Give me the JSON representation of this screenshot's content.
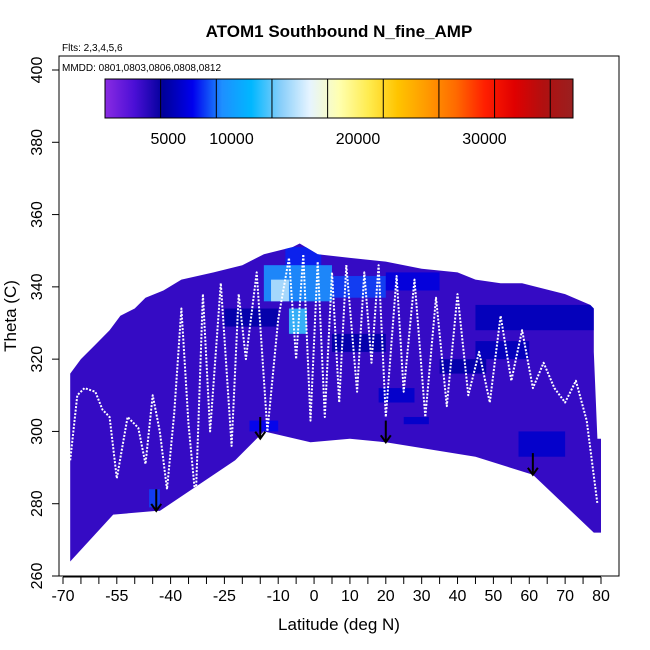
{
  "chart_data": {
    "type": "heatmap",
    "title": "ATOM1 Southbound N_fine_AMP",
    "subtitle_flights": "Flts: 2,3,4,5,6",
    "subtitle_dates": "MMDD: 0801,0803,0806,0808,0812",
    "xlabel": "Latitude (deg N)",
    "ylabel": "Theta (C)",
    "xlim": [
      -70,
      80
    ],
    "ylim": [
      260,
      400
    ],
    "x_ticks": [
      -70,
      -55,
      -40,
      -25,
      -10,
      0,
      10,
      20,
      30,
      40,
      50,
      60,
      70,
      80
    ],
    "x_tick_labels": [
      "-70",
      "-55",
      "-40",
      "-25",
      "-10",
      "0",
      "10",
      "20",
      "30",
      "40",
      "50",
      "60",
      "70",
      "80"
    ],
    "x_minor_ticks": [
      -65,
      -60,
      -50,
      -45,
      -35,
      -30,
      -20,
      -15,
      -5,
      5,
      15,
      25,
      35,
      45,
      55,
      65,
      75
    ],
    "y_ticks": [
      260,
      280,
      300,
      320,
      340,
      360,
      380,
      400
    ],
    "y_tick_labels": [
      "260",
      "280",
      "300",
      "320",
      "340",
      "360",
      "380",
      "400"
    ],
    "colorbar": {
      "min": 0,
      "max": 37000,
      "tick_values": [
        5000,
        10000,
        20000,
        30000
      ],
      "tick_labels": [
        "5000",
        "10000",
        "20000",
        "30000"
      ],
      "division_values": [
        4400,
        8800,
        13200,
        17600,
        22000,
        26400,
        30800,
        35200
      ],
      "colors": [
        "#8a2be2",
        "#4b0fd6",
        "#00009a",
        "#0000ee",
        "#1e8fff",
        "#00b7ff",
        "#87cefa",
        "#e6f4ff",
        "#ffffb0",
        "#ffec50",
        "#ffc400",
        "#ff9a00",
        "#ff6a00",
        "#ff1e00",
        "#e00000",
        "#b01010",
        "#9a2020"
      ]
    },
    "data_region": {
      "upper_boundary": [
        [
          -68,
          316
        ],
        [
          -65,
          320
        ],
        [
          -61,
          324
        ],
        [
          -57,
          328
        ],
        [
          -54,
          332
        ],
        [
          -50,
          334
        ],
        [
          -47,
          337
        ],
        [
          -42,
          339
        ],
        [
          -37,
          342
        ],
        [
          -28,
          344
        ],
        [
          -20,
          346
        ],
        [
          -14,
          349
        ],
        [
          -6,
          351
        ],
        [
          -4,
          352
        ],
        [
          1,
          349
        ],
        [
          10,
          348
        ],
        [
          20,
          347
        ],
        [
          30,
          345
        ],
        [
          40,
          344
        ],
        [
          45,
          342
        ],
        [
          52,
          341
        ],
        [
          58,
          341
        ],
        [
          62,
          340
        ],
        [
          70,
          338
        ],
        [
          77,
          335
        ],
        [
          78,
          334
        ]
      ],
      "lower_boundary": [
        [
          78,
          322
        ],
        [
          79,
          298
        ],
        [
          80,
          298
        ],
        [
          80,
          272
        ],
        [
          78,
          272
        ],
        [
          61,
          288
        ],
        [
          45,
          293
        ],
        [
          20,
          297
        ],
        [
          10,
          298
        ],
        [
          -1,
          297
        ],
        [
          -14,
          300
        ],
        [
          -22,
          292
        ],
        [
          -43,
          278
        ],
        [
          -44,
          278
        ],
        [
          -56,
          277
        ],
        [
          -68,
          264
        ]
      ],
      "background_value": 3000,
      "patches": [
        {
          "lat_range": [
            -8,
            2
          ],
          "theta_range": [
            345,
            351
          ],
          "value": 7500
        },
        {
          "lat_range": [
            -14,
            5
          ],
          "theta_range": [
            336,
            346
          ],
          "value": 9500
        },
        {
          "lat_range": [
            -12,
            -7
          ],
          "theta_range": [
            336,
            342
          ],
          "value": 15000
        },
        {
          "lat_range": [
            -7,
            -2
          ],
          "theta_range": [
            327,
            334
          ],
          "value": 12500
        },
        {
          "lat_range": [
            5,
            20
          ],
          "theta_range": [
            337,
            343
          ],
          "value": 8000
        },
        {
          "lat_range": [
            20,
            35
          ],
          "theta_range": [
            339,
            344
          ],
          "value": 6500
        },
        {
          "lat_range": [
            45,
            78
          ],
          "theta_range": [
            328,
            335
          ],
          "value": 5500
        },
        {
          "lat_range": [
            -25,
            -10
          ],
          "theta_range": [
            329,
            334
          ],
          "value": 5000
        },
        {
          "lat_range": [
            5,
            20
          ],
          "theta_range": [
            322,
            327
          ],
          "value": 5000
        },
        {
          "lat_range": [
            45,
            60
          ],
          "theta_range": [
            320,
            325
          ],
          "value": 5500
        },
        {
          "lat_range": [
            35,
            48
          ],
          "theta_range": [
            316,
            320
          ],
          "value": 5000
        },
        {
          "lat_range": [
            18,
            28
          ],
          "theta_range": [
            308,
            312
          ],
          "value": 6000
        },
        {
          "lat_range": [
            57,
            70
          ],
          "theta_range": [
            293,
            300
          ],
          "value": 6000
        },
        {
          "lat_range": [
            -18,
            -10
          ],
          "theta_range": [
            300,
            303
          ],
          "value": 7000
        },
        {
          "lat_range": [
            25,
            32
          ],
          "theta_range": [
            302,
            304
          ],
          "value": 6000
        },
        {
          "lat_range": [
            -46,
            -43
          ],
          "theta_range": [
            279,
            284
          ],
          "value": 8000
        }
      ]
    },
    "flight_tracks": [
      [
        [
          -68,
          292
        ],
        [
          -66,
          310
        ],
        [
          -64,
          312
        ],
        [
          -61,
          311
        ],
        [
          -59,
          306
        ],
        [
          -57,
          304
        ],
        [
          -55,
          287
        ],
        [
          -52,
          304
        ],
        [
          -49,
          301
        ],
        [
          -47,
          291
        ],
        [
          -45,
          310
        ],
        [
          -43,
          300
        ],
        [
          -41,
          284
        ],
        [
          -39,
          305
        ],
        [
          -37,
          334
        ],
        [
          -35,
          302
        ],
        [
          -33,
          281
        ]
      ],
      [
        [
          -33,
          281
        ],
        [
          -31,
          338
        ],
        [
          -29,
          300
        ],
        [
          -26,
          341
        ],
        [
          -23,
          296
        ],
        [
          -21,
          338
        ],
        [
          -19,
          320
        ],
        [
          -16,
          344
        ],
        [
          -13,
          300
        ],
        [
          -10,
          331
        ],
        [
          -7,
          348
        ],
        [
          -5,
          320
        ],
        [
          -3,
          349
        ],
        [
          -1,
          303
        ],
        [
          1,
          347
        ],
        [
          3,
          304
        ],
        [
          5,
          344
        ],
        [
          7,
          308
        ],
        [
          9,
          346
        ]
      ],
      [
        [
          9,
          346
        ],
        [
          12,
          311
        ],
        [
          14,
          344
        ],
        [
          16,
          319
        ],
        [
          18,
          346
        ],
        [
          20,
          304
        ],
        [
          23,
          343
        ],
        [
          25,
          311
        ],
        [
          28,
          342
        ],
        [
          31,
          304
        ],
        [
          34,
          337
        ],
        [
          37,
          307
        ],
        [
          40,
          338
        ],
        [
          43,
          310
        ],
        [
          46,
          322
        ],
        [
          49,
          308
        ],
        [
          52,
          332
        ],
        [
          55,
          314
        ],
        [
          58,
          328
        ],
        [
          61,
          312
        ],
        [
          64,
          319
        ],
        [
          67,
          312
        ],
        [
          70,
          308
        ],
        [
          73,
          314
        ],
        [
          76,
          303
        ],
        [
          79,
          280
        ]
      ]
    ],
    "arrows": [
      {
        "lat": -44,
        "theta_top": 284,
        "theta_bottom": 278
      },
      {
        "lat": -15,
        "theta_top": 304,
        "theta_bottom": 298
      },
      {
        "lat": 20,
        "theta_top": 303,
        "theta_bottom": 297
      },
      {
        "lat": 61,
        "theta_top": 294,
        "theta_bottom": 288
      }
    ]
  }
}
